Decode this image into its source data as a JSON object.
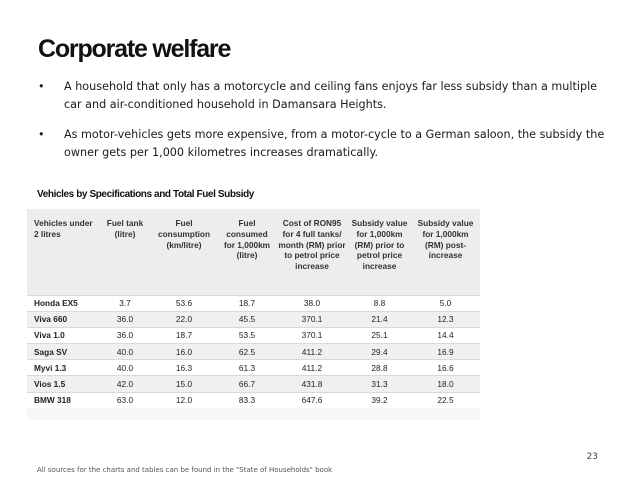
{
  "slide": {
    "title": "Corporate welfare",
    "bullets": [
      "A household that only has a motorcycle and ceiling fans enjoys far less subsidy than a multiple car and air-conditioned household in Damansara Heights.",
      "As motor-vehicles gets more expensive, from a motor-cycle to a German saloon, the subsidy the owner gets per 1,000 kilometres increases dramatically."
    ],
    "bullet_marker": "•",
    "table_caption": "Vehicles by Specifications and Total Fuel Subsidy",
    "page_number": "23",
    "footer": "All sources for the charts and tables can be found in the \"State of Households\" book"
  },
  "table": {
    "headers": [
      "Vehicles under 2 litres",
      "Fuel tank (litre)",
      "Fuel consumption (km/litre)",
      "Fuel consumed for 1,000km (litre)",
      "Cost of RON95 for 4 full tanks/ month (RM) prior to petrol price increase",
      "Subsidy value for 1,000km (RM) prior to petrol price increase",
      "Subsidy value for 1,000km (RM) post-increase"
    ],
    "rows": [
      [
        "Honda EX5",
        "3.7",
        "53.6",
        "18.7",
        "38.0",
        "8.8",
        "5.0"
      ],
      [
        "Viva 660",
        "36.0",
        "22.0",
        "45.5",
        "370.1",
        "21.4",
        "12.3"
      ],
      [
        "Viva 1.0",
        "36.0",
        "18.7",
        "53.5",
        "370.1",
        "25.1",
        "14.4"
      ],
      [
        "Saga SV",
        "40.0",
        "16.0",
        "62.5",
        "411.2",
        "29.4",
        "16.9"
      ],
      [
        "Myvi 1.3",
        "40.0",
        "16.3",
        "61.3",
        "411.2",
        "28.8",
        "16.6"
      ],
      [
        "Vios 1.5",
        "42.0",
        "15.0",
        "66.7",
        "431.8",
        "31.3",
        "18.0"
      ],
      [
        "BMW 318",
        "63.0",
        "12.0",
        "83.3",
        "647.6",
        "39.2",
        "22.5"
      ]
    ]
  }
}
